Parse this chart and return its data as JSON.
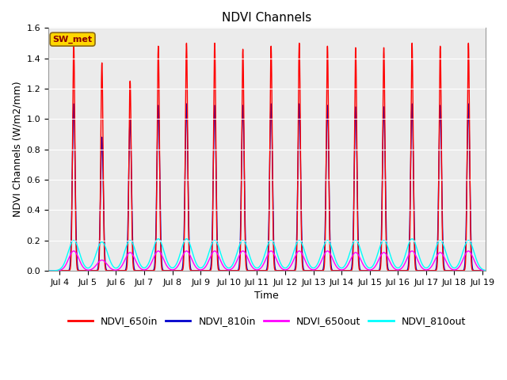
{
  "title": "NDVI Channels",
  "xlabel": "Time",
  "ylabel": "NDVI Channels (W/m2/mm)",
  "ylim": [
    0.0,
    1.6
  ],
  "xlim_days": [
    3.6,
    19.1
  ],
  "xtick_days": [
    4,
    5,
    6,
    7,
    8,
    9,
    10,
    11,
    12,
    13,
    14,
    15,
    16,
    17,
    18,
    19
  ],
  "xtick_labels": [
    "Jul 4",
    "Jul 5",
    "Jul 6",
    "Jul 7",
    "Jul 8",
    "Jul 9",
    "Jul 10",
    "Jul 11",
    "Jul 12",
    "Jul 13",
    "Jul 14",
    "Jul 15",
    "Jul 16",
    "Jul 17",
    "Jul 18",
    "Jul 19"
  ],
  "ytick_vals": [
    0.0,
    0.2,
    0.4,
    0.6,
    0.8,
    1.0,
    1.2,
    1.4,
    1.6
  ],
  "colors": {
    "NDVI_650in": "#FF0000",
    "NDVI_810in": "#0000CC",
    "NDVI_650out": "#FF00FF",
    "NDVI_810out": "#00FFFF"
  },
  "legend_labels": [
    "NDVI_650in",
    "NDVI_810in",
    "NDVI_650out",
    "NDVI_810out"
  ],
  "sw_met_label": "SW_met",
  "sw_met_bg": "#FFD700",
  "sw_met_text_color": "#8B0000",
  "plot_bg": "#EBEBEB",
  "peak_650in": [
    1.5,
    1.37,
    1.25,
    1.48,
    1.5,
    1.5,
    1.46,
    1.48,
    1.5,
    1.48,
    1.47,
    1.47,
    1.5,
    1.48,
    1.5
  ],
  "peak_810in": [
    1.1,
    0.88,
    1.0,
    1.09,
    1.1,
    1.09,
    1.09,
    1.1,
    1.1,
    1.09,
    1.08,
    1.08,
    1.1,
    1.09,
    1.1
  ],
  "peak_650out": [
    0.13,
    0.07,
    0.12,
    0.13,
    0.13,
    0.13,
    0.13,
    0.13,
    0.13,
    0.13,
    0.12,
    0.12,
    0.13,
    0.12,
    0.13
  ],
  "peak_810out": [
    0.2,
    0.19,
    0.2,
    0.21,
    0.21,
    0.2,
    0.2,
    0.2,
    0.2,
    0.2,
    0.2,
    0.2,
    0.21,
    0.2,
    0.2
  ],
  "linewidth": 1.0,
  "figsize": [
    6.4,
    4.8
  ],
  "dpi": 100
}
